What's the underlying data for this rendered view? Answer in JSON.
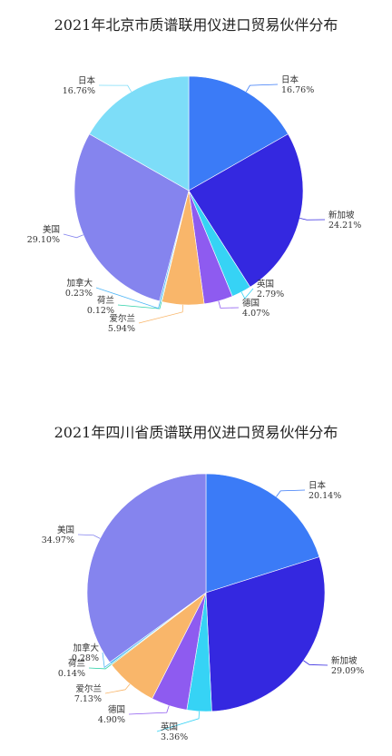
{
  "chart_data": [
    {
      "type": "pie",
      "title": "2021年北京市质谱联用仪进口贸易伙伴分布",
      "categories": [
        "日本",
        "新加坡",
        "英国",
        "德国",
        "爱尔兰",
        "荷兰",
        "加拿大",
        "美国",
        "日本"
      ],
      "values": [
        16.76,
        24.21,
        2.79,
        4.07,
        5.94,
        0.12,
        0.23,
        29.1,
        16.76
      ],
      "labels": [
        "16.76%",
        "24.21%",
        "2.79%",
        "4.07%",
        "5.94%",
        "0.12%",
        "0.23%",
        "29.10%",
        "16.76%"
      ],
      "colors": [
        "#3B7BF7",
        "#3428E0",
        "#36D3F5",
        "#8E5BF0",
        "#F9B66A",
        "#2ED1A8",
        "#4FB7F7",
        "#8584EE",
        "#7DDDF8"
      ]
    },
    {
      "type": "pie",
      "title": "2021年四川省质谱联用仪进口贸易伙伴分布",
      "categories": [
        "日本",
        "新加坡",
        "英国",
        "德国",
        "爱尔兰",
        "荷兰",
        "加拿大",
        "美国"
      ],
      "values": [
        20.14,
        29.09,
        3.36,
        4.9,
        7.13,
        0.14,
        0.28,
        34.97
      ],
      "labels": [
        "20.14%",
        "29.09%",
        "3.36%",
        "4.90%",
        "7.13%",
        "0.14%",
        "0.28%",
        "34.97%"
      ],
      "colors": [
        "#3B7BF7",
        "#3428E0",
        "#36D3F5",
        "#8E5BF0",
        "#F9B66A",
        "#2ED1A8",
        "#4FB7F7",
        "#8584EE"
      ]
    }
  ]
}
